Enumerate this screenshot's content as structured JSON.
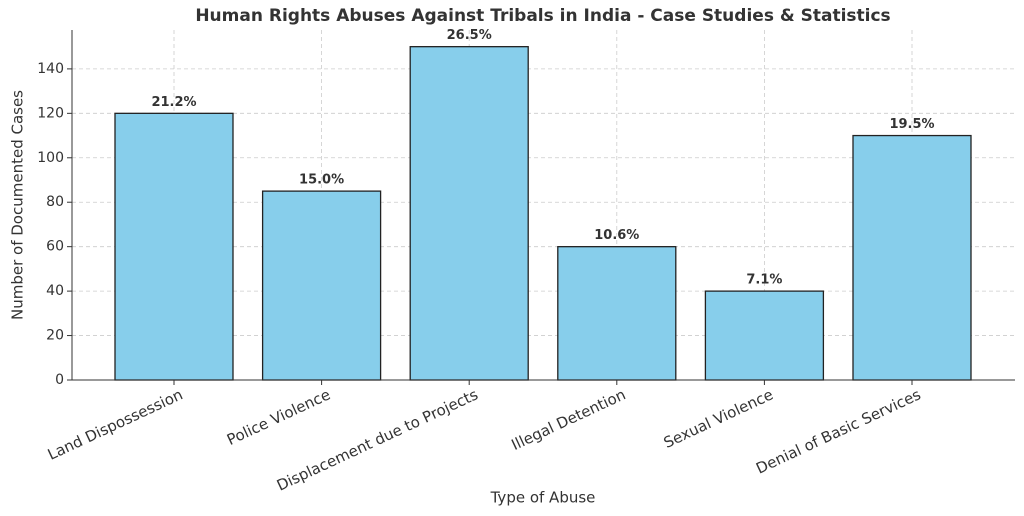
{
  "chart_data": {
    "type": "bar",
    "title": "Human Rights Abuses Against Tribals in India - Case Studies & Statistics",
    "x_label": "Type of Abuse",
    "y_label": "Number of Documented Cases",
    "categories": [
      "Land Dispossession",
      "Police Violence",
      "Displacement due to Projects",
      "Illegal Detention",
      "Sexual Violence",
      "Denial of Basic Services"
    ],
    "values": [
      120,
      85,
      150,
      60,
      40,
      110
    ],
    "bar_labels": [
      "21.2%",
      "15.0%",
      "26.5%",
      "10.6%",
      "7.1%",
      "19.5%"
    ],
    "color": "#87ceeb",
    "ylim": [
      0,
      157.5
    ],
    "yticks": [
      0,
      20,
      40,
      60,
      80,
      100,
      120,
      140
    ],
    "grid": true
  }
}
